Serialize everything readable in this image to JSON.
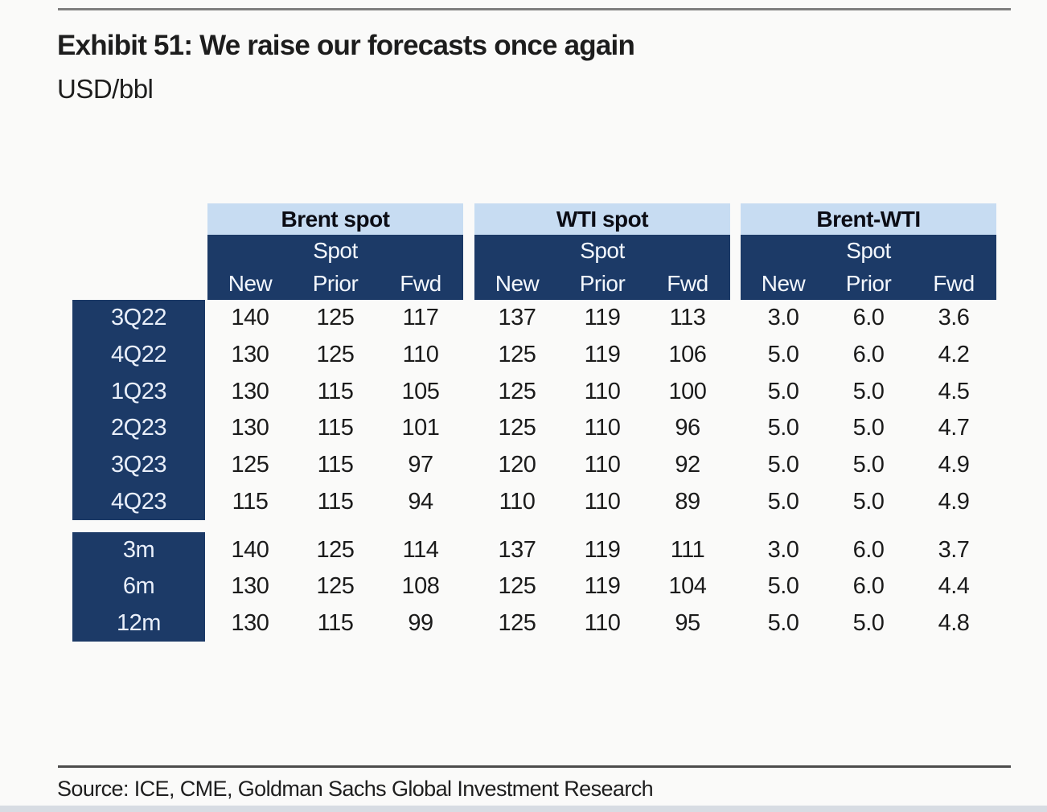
{
  "page": {
    "title": "Exhibit 51: We raise our forecasts once again",
    "subtitle": "USD/bbl",
    "source": "Source: ICE, CME, Goldman Sachs Global Investment Research"
  },
  "colors": {
    "navy": "#1c3a67",
    "light_blue": "#c7dcf2",
    "title_text": "#1d1d1d",
    "row_label_text": "#e9effa"
  },
  "chart_data": {
    "type": "table",
    "title": "Exhibit 51: We raise our forecasts once again",
    "unit": "USD/bbl",
    "source": "Source: ICE, CME, Goldman Sachs Global Investment Research",
    "column_groups": [
      {
        "label": "Brent spot"
      },
      {
        "label": "WTI spot"
      },
      {
        "label": "Brent-WTI"
      }
    ],
    "subcolumns_top": [
      "",
      "Spot",
      ""
    ],
    "subcolumns": [
      "New",
      "Prior",
      "Fwd"
    ],
    "sections": [
      {
        "name": "quarterly",
        "rows": [
          {
            "label": "3Q22",
            "cells": [
              [
                "140",
                "125",
                "117"
              ],
              [
                "137",
                "119",
                "113"
              ],
              [
                "3.0",
                "6.0",
                "3.6"
              ]
            ]
          },
          {
            "label": "4Q22",
            "cells": [
              [
                "130",
                "125",
                "110"
              ],
              [
                "125",
                "119",
                "106"
              ],
              [
                "5.0",
                "6.0",
                "4.2"
              ]
            ]
          },
          {
            "label": "1Q23",
            "cells": [
              [
                "130",
                "115",
                "105"
              ],
              [
                "125",
                "110",
                "100"
              ],
              [
                "5.0",
                "5.0",
                "4.5"
              ]
            ]
          },
          {
            "label": "2Q23",
            "cells": [
              [
                "130",
                "115",
                "101"
              ],
              [
                "125",
                "110",
                "96"
              ],
              [
                "5.0",
                "5.0",
                "4.7"
              ]
            ]
          },
          {
            "label": "3Q23",
            "cells": [
              [
                "125",
                "115",
                "97"
              ],
              [
                "120",
                "110",
                "92"
              ],
              [
                "5.0",
                "5.0",
                "4.9"
              ]
            ]
          },
          {
            "label": "4Q23",
            "cells": [
              [
                "115",
                "115",
                "94"
              ],
              [
                "110",
                "110",
                "89"
              ],
              [
                "5.0",
                "5.0",
                "4.9"
              ]
            ]
          }
        ]
      },
      {
        "name": "forward",
        "rows": [
          {
            "label": "3m",
            "cells": [
              [
                "140",
                "125",
                "114"
              ],
              [
                "137",
                "119",
                "111"
              ],
              [
                "3.0",
                "6.0",
                "3.7"
              ]
            ]
          },
          {
            "label": "6m",
            "cells": [
              [
                "130",
                "125",
                "108"
              ],
              [
                "125",
                "119",
                "104"
              ],
              [
                "5.0",
                "6.0",
                "4.4"
              ]
            ]
          },
          {
            "label": "12m",
            "cells": [
              [
                "130",
                "115",
                "99"
              ],
              [
                "125",
                "110",
                "95"
              ],
              [
                "5.0",
                "5.0",
                "4.8"
              ]
            ]
          }
        ]
      }
    ]
  }
}
